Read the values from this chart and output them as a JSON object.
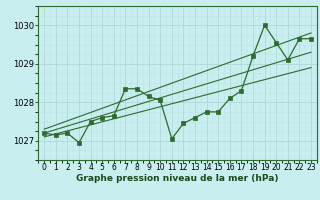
{
  "xlabel": "Graphe pression niveau de la mer (hPa)",
  "x": [
    0,
    1,
    2,
    3,
    4,
    5,
    6,
    7,
    8,
    9,
    10,
    11,
    12,
    13,
    14,
    15,
    16,
    17,
    18,
    19,
    20,
    21,
    22,
    23
  ],
  "y_main": [
    1027.2,
    1027.15,
    1027.2,
    1026.95,
    1027.5,
    1027.6,
    1027.65,
    1028.35,
    1028.35,
    1028.15,
    1028.05,
    1027.05,
    1027.45,
    1027.6,
    1027.75,
    1027.75,
    1028.1,
    1028.3,
    1029.2,
    1030.0,
    1029.55,
    1029.1,
    1029.65,
    1029.65
  ],
  "trend1_x": [
    0,
    23
  ],
  "trend1_y": [
    1027.1,
    1028.9
  ],
  "trend2_x": [
    0,
    23
  ],
  "trend2_y": [
    1027.2,
    1029.3
  ],
  "trend3_x": [
    0,
    23
  ],
  "trend3_y": [
    1027.3,
    1029.8
  ],
  "line_color": "#2d6a2d",
  "bg_color": "#c8eef0",
  "grid_major_color": "#b0d8d8",
  "grid_minor_color": "#c0e4e4",
  "xlim": [
    -0.5,
    23.5
  ],
  "ylim": [
    1026.5,
    1030.5
  ],
  "yticks": [
    1027,
    1028,
    1029,
    1030
  ],
  "xticks": [
    0,
    1,
    2,
    3,
    4,
    5,
    6,
    7,
    8,
    9,
    10,
    11,
    12,
    13,
    14,
    15,
    16,
    17,
    18,
    19,
    20,
    21,
    22,
    23
  ],
  "tick_fontsize": 5.5,
  "xlabel_fontsize": 6.5
}
